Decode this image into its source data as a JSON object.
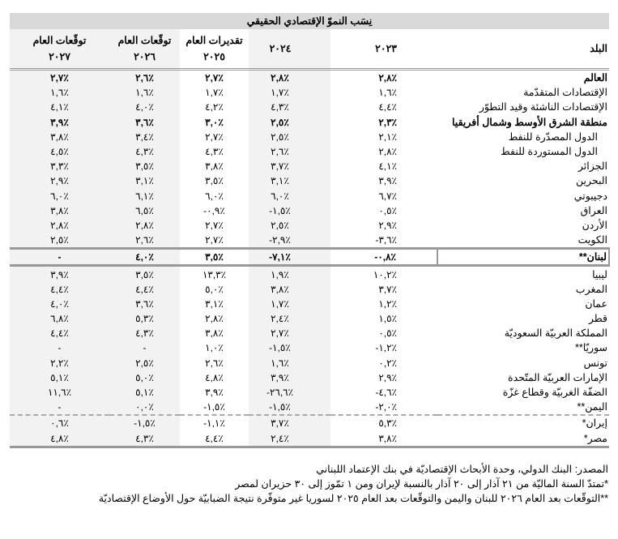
{
  "title": "نِسَب النموّ الإقتصادي الحقيقي",
  "headers": {
    "country": "البلد",
    "y2023": "٢٠٢٣",
    "y2024": "٢٠٢٤",
    "y2025": [
      "تقديرات العام",
      "٢٠٢٥"
    ],
    "y2026": [
      "توقّعات العام",
      "٢٠٢٦"
    ],
    "y2027": [
      "توقّعات العام",
      "٢٠٢٧"
    ]
  },
  "rows": [
    {
      "country": "العالم",
      "style": "bold",
      "values": [
        "٢,٨٪",
        "٢,٨٪",
        "٢,٧٪",
        "٢,٦٪",
        "٢,٧٪"
      ]
    },
    {
      "country": "الإقتصادات المتقدّمة",
      "values": [
        "١,٦٪",
        "١,٧٪",
        "١,٧٪",
        "١,٦٪",
        "١,٦٪"
      ]
    },
    {
      "country": "الإقتصادات الناشئة وقيد التطوّر",
      "values": [
        "٤,٤٪",
        "٤,٣٪",
        "٤,٢٪",
        "٤,٠٪",
        "٤,١٪"
      ]
    },
    {
      "country": "منطقة الشرق الأوسط وشمال أفريقيا",
      "style": "bold",
      "values": [
        "٢,٣٪",
        "٢,٥٪",
        "٣,٠٪",
        "٣,٦٪",
        "٣,٩٪"
      ]
    },
    {
      "country": "الدول المصدّرة للنفط",
      "style": "indent",
      "values": [
        "٢,١٪",
        "٢,٥٪",
        "٢,٧٪",
        "٣,٤٪",
        "٣,٨٪"
      ]
    },
    {
      "country": "الدول المستوردة للنفط",
      "style": "indent",
      "values": [
        "٢,٨٪",
        "٢,٦٪",
        "٤,٣٪",
        "٤,٣٪",
        "٤,٥٪"
      ]
    },
    {
      "country": "الجزائر",
      "values": [
        "٤,١٪",
        "٣,٧٪",
        "٣,٨٪",
        "٣,٥٪",
        "٣,٣٪"
      ]
    },
    {
      "country": "البحرين",
      "values": [
        "٣,٩٪",
        "٣,١٪",
        "٣,٥٪",
        "٣,١٪",
        "٢,٩٪"
      ]
    },
    {
      "country": "دجيبوتي",
      "values": [
        "٦,٧٪",
        "٦,٠٪",
        "٦,٠٪",
        "٦,١٪",
        "٦,٠٪"
      ]
    },
    {
      "country": "العراق",
      "values": [
        "٠,٥٪",
        "-١,٥٪",
        "-٠,٩٪",
        "٦,٥٪",
        "٣,٨٪"
      ]
    },
    {
      "country": "الأردن",
      "values": [
        "٢,٩٪",
        "٢,٥٪",
        "٢,٧٪",
        "٢,٨٪",
        "٢,٨٪"
      ]
    },
    {
      "country": "الكويت",
      "values": [
        "-٣,٦٪",
        "-٢,٩٪",
        "٢,٧٪",
        "٢,٦٪",
        "٢,٥٪"
      ]
    },
    {
      "country": "لبنان**",
      "style": "highlight",
      "values": [
        "-٠,٨٪",
        "-٧,١٪",
        "٣,٥٪",
        "٤,٠٪",
        "-"
      ]
    },
    {
      "country": "ليبيا",
      "values": [
        "١٠,٢٪",
        "١,٩٪",
        "١٣,٣٪",
        "٣,٥٪",
        "٣,٩٪"
      ]
    },
    {
      "country": "المغرب",
      "values": [
        "٣,٧٪",
        "٣,٨٪",
        "٥,٠٪",
        "٤,٤٪",
        "٤,٤٪"
      ]
    },
    {
      "country": "عمان",
      "values": [
        "١,٢٪",
        "١,٧٪",
        "٣,١٪",
        "٣,٦٪",
        "٤,٠٪"
      ]
    },
    {
      "country": "قطر",
      "values": [
        "١,٥٪",
        "٢,٤٪",
        "٢,٨٪",
        "٥,٣٪",
        "٦,٨٪"
      ]
    },
    {
      "country": "المملكة العربيّة السعوديّة",
      "values": [
        "٠,٥٪",
        "٢,٧٪",
        "٣,٨٪",
        "٤,٣٪",
        "٤,٤٪"
      ]
    },
    {
      "country": "سوريّا**",
      "values": [
        "-١,٢٪",
        "-١,٥٪",
        "١,٠٪",
        "-",
        "-"
      ]
    },
    {
      "country": "تونس",
      "values": [
        "٠,٢٪",
        "١,٦٪",
        "٢,٦٪",
        "٢,٥٪",
        "٢,٢٪"
      ]
    },
    {
      "country": "الإمارات العربيّة المتّحدة",
      "values": [
        "٢,٩٪",
        "٣,٩٪",
        "٤,٨٪",
        "٥,٠٪",
        "٥,١٪"
      ]
    },
    {
      "country": "الضفّة الغربيّة وقطاع غزّة",
      "values": [
        "-٤,٦٪",
        "-٢٦,٦٪",
        "٣,٩٪",
        "٥,١٪",
        "١١,٦٪"
      ]
    },
    {
      "country": "اليمن**",
      "values": [
        "-٢,٠٪",
        "-١,٥٪",
        "-١,٥٪",
        "٠,٠٪",
        "-"
      ]
    },
    {
      "country": "إيران*",
      "style": "dashed",
      "values": [
        "٥,٣٪",
        "٣,٧٪",
        "-١,١٪",
        "-١,٥٪",
        "٠,٦٪"
      ]
    },
    {
      "country": "مصر*",
      "style": "last",
      "values": [
        "٣,٨٪",
        "٢,٤٪",
        "٤,٤٪",
        "٤,٣٪",
        "٤,٨٪"
      ]
    }
  ],
  "notes": [
    "المصدر: البنك الدولي، وحدة الأبحاث الإقتصاديّة في بنك الإعتماد اللبناني",
    "*تمتدّ السنة الماليّة من ٢١ آذار إلى ٢٠ آذار بالنسبة لإيران ومن ١ تمّوز إلى ٣٠ حزيران لمصر",
    "**التوقّعات بعد العام ٢٠٢٦ للبنان واليمن والتوقّعات بعد العام ٢٠٢٥ لسوريا غير متوفّرة نتيجة الضبابيّة حول الأوضاع الإقتصاديّة"
  ],
  "colors": {
    "title_bg": "#d9d9d9",
    "shade": "#f2f2f2",
    "rule": "#999999"
  }
}
